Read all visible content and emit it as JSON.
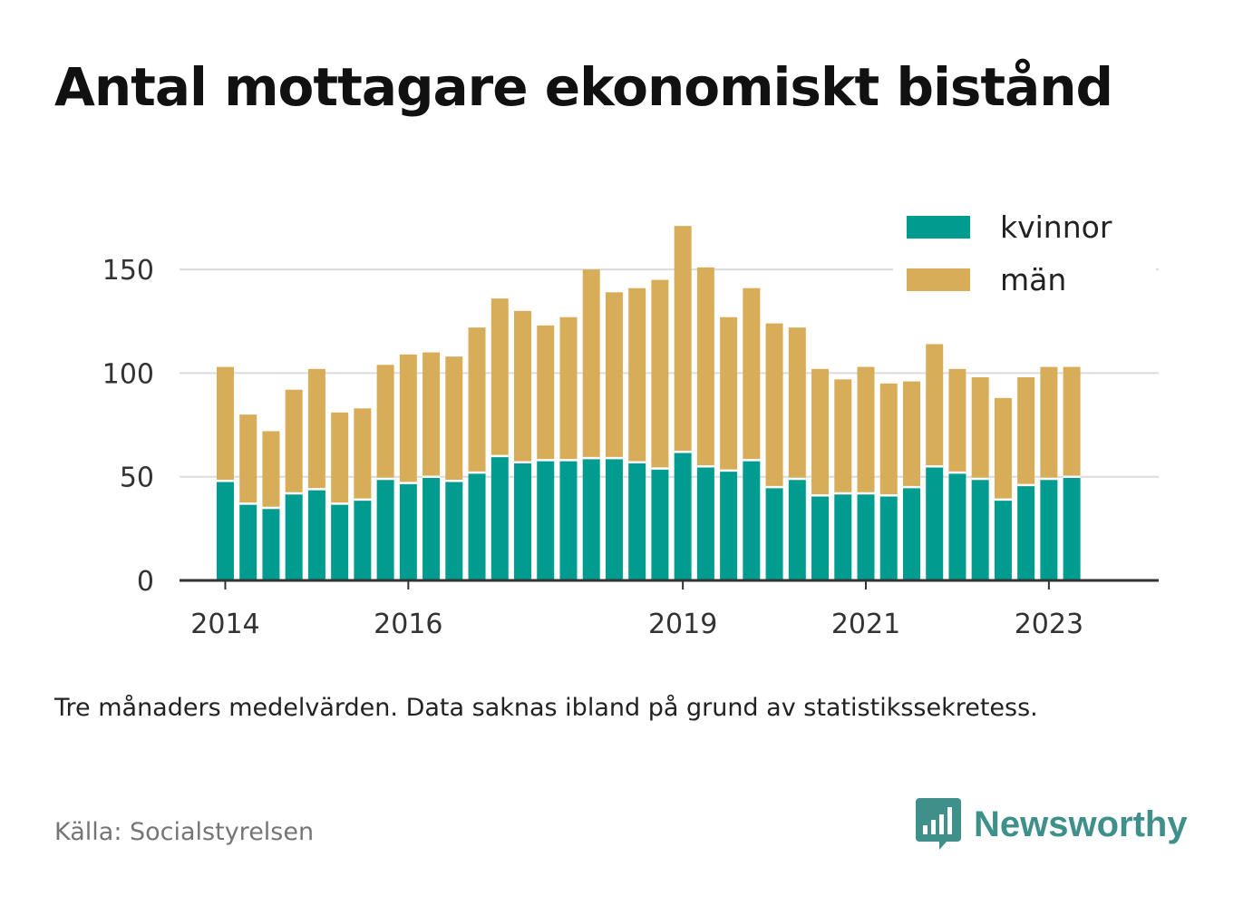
{
  "title": "Antal mottagare ekonomiskt bistånd",
  "caption": "Tre månaders medelvärden. Data saknas ibland på grund av statistikssekretess.",
  "source": "Källa: Socialstyrelsen",
  "brand": {
    "name": "Newsworthy",
    "icon": "newsworthy-logo-icon",
    "color": "#3f8f8b"
  },
  "chart_data": {
    "type": "bar",
    "stacked": true,
    "x_ticks": [
      {
        "label": "2014",
        "year": 2014
      },
      {
        "label": "2016",
        "year": 2016
      },
      {
        "label": "2019",
        "year": 2019
      },
      {
        "label": "2021",
        "year": 2021
      },
      {
        "label": "2023",
        "year": 2023
      }
    ],
    "x_range": [
      2013.5,
      2024.2
    ],
    "first_bar_year": 2014.0,
    "bar_step_years": 0.25,
    "ylim": [
      0,
      175
    ],
    "y_ticks": [
      0,
      50,
      100,
      150
    ],
    "grid": true,
    "legend": "top-right",
    "series": [
      {
        "name": "kvinnor",
        "color": "#009c8f",
        "values": [
          48,
          37,
          35,
          42,
          44,
          37,
          39,
          49,
          47,
          50,
          48,
          52,
          60,
          57,
          58,
          58,
          59,
          59,
          57,
          54,
          62,
          55,
          53,
          58,
          45,
          49,
          41,
          42,
          42,
          41,
          45,
          55,
          52,
          49,
          39,
          46,
          49,
          50
        ]
      },
      {
        "name": "män",
        "color": "#d8ad5a",
        "values": [
          55,
          43,
          37,
          50,
          58,
          44,
          44,
          55,
          62,
          60,
          60,
          70,
          76,
          73,
          65,
          69,
          91,
          80,
          84,
          91,
          109,
          96,
          74,
          83,
          79,
          73,
          61,
          55,
          61,
          54,
          51,
          59,
          50,
          49,
          49,
          52,
          54,
          53
        ]
      }
    ]
  }
}
